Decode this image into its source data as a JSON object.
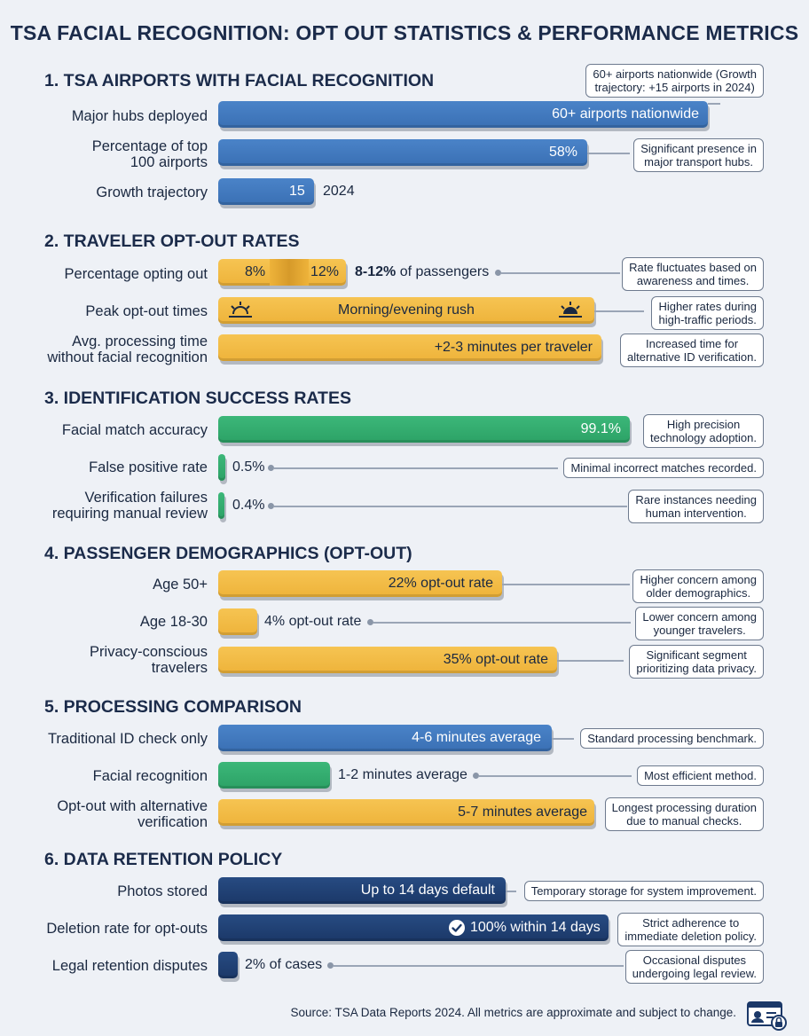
{
  "title": "TSA FACIAL RECOGNITION: OPT OUT STATISTICS & PERFORMANCE METRICS",
  "source": "Source: TSA Data Reports 2024. All metrics are approximate and subject to change.",
  "colors": {
    "blue": "#3f77bd",
    "yellow": "#f2bb45",
    "green": "#33ad6f",
    "navy": "#21416f",
    "background": "#eef1f6"
  },
  "icons": [
    "sunrise-icon",
    "sunset-icon",
    "check-circle-icon",
    "id-card-lock-icon"
  ],
  "sections": [
    {
      "title": "1. TSA AIRPORTS WITH FACIAL RECOGNITION",
      "rows": [
        {
          "label": "Major hubs deployed",
          "bar_text": "60+ airports nationwide",
          "note": "60+ airports nationwide (Growth\ntrajectory: +15 airports in 2024)"
        },
        {
          "label": "Percentage of top\n100 airports",
          "bar_text": "58%",
          "note": "Significant presence in\nmajor transport hubs."
        },
        {
          "label": "Growth trajectory",
          "bar_text": "15",
          "outside_text": "2024"
        }
      ]
    },
    {
      "title": "2. TRAVELER OPT-OUT RATES",
      "rows": [
        {
          "label": "Percentage opting out",
          "low_text": "8%",
          "high_text": "12%",
          "outside_bold": "8-12%",
          "outside_text": " of passengers",
          "note": "Rate fluctuates based on\nawareness and times."
        },
        {
          "label": "Peak opt-out times",
          "bar_text": "Morning/evening rush",
          "note": "Higher rates during\nhigh-traffic periods."
        },
        {
          "label": "Avg. processing time\nwithout facial recognition",
          "bar_text": "+2-3 minutes per traveler",
          "note": "Increased time for\nalternative ID verification."
        }
      ]
    },
    {
      "title": "3. IDENTIFICATION SUCCESS RATES",
      "rows": [
        {
          "label": "Facial match accuracy",
          "bar_text": "99.1%",
          "note": "High precision\ntechnology adoption."
        },
        {
          "label": "False positive rate",
          "outside_text": "0.5%",
          "note": "Minimal incorrect matches recorded."
        },
        {
          "label": "Verification failures\nrequiring manual review",
          "outside_text": "0.4%",
          "note": "Rare instances needing\nhuman intervention."
        }
      ]
    },
    {
      "title": "4.  PASSENGER DEMOGRAPHICS (OPT-OUT)",
      "rows": [
        {
          "label": "Age 50+",
          "bar_text": "22% opt-out rate",
          "note": "Higher concern among\nolder demographics."
        },
        {
          "label": "Age 18-30",
          "outside_text": "4% opt-out rate",
          "note": "Lower concern among\nyounger travelers."
        },
        {
          "label": "Privacy-conscious\ntravelers",
          "bar_text": "35% opt-out rate",
          "note": "Significant segment\nprioritizing data privacy."
        }
      ]
    },
    {
      "title": "5. PROCESSING COMPARISON",
      "rows": [
        {
          "label": "Traditional ID check only",
          "bar_text": "4-6 minutes average",
          "note": "Standard processing benchmark."
        },
        {
          "label": "Facial recognition",
          "outside_text": "1-2 minutes average",
          "note": "Most efficient method."
        },
        {
          "label": "Opt-out with alternative\nverification",
          "bar_text": "5-7 minutes average",
          "note": "Longest processing duration\ndue to manual checks."
        }
      ]
    },
    {
      "title": "6. DATA RETENTION POLICY",
      "rows": [
        {
          "label": "Photos stored",
          "bar_text": "Up to 14 days default",
          "note": "Temporary storage for system improvement."
        },
        {
          "label": "Deletion rate for opt-outs",
          "bar_text": "100% within 14 days",
          "note": "Strict adherence to\nimmediate deletion policy."
        },
        {
          "label": "Legal retention disputes",
          "outside_text": "2% of cases",
          "note": "Occasional disputes\nundergoing legal review."
        }
      ]
    }
  ],
  "chart_data": {
    "type": "bar",
    "title": "TSA FACIAL RECOGNITION: OPT OUT STATISTICS & PERFORMANCE METRICS",
    "orientation": "horizontal",
    "grid": false,
    "legend": "none",
    "groups": [
      {
        "name": "1. TSA AIRPORTS WITH FACIAL RECOGNITION",
        "categories": [
          "Major hubs deployed",
          "Percentage of top 100 airports",
          "Growth trajectory"
        ],
        "values": [
          60,
          58,
          15
        ]
      },
      {
        "name": "2. TRAVELER OPT-OUT RATES",
        "categories": [
          "Percentage opting out",
          "Peak opt-out times",
          "Avg. processing time without facial recognition"
        ],
        "values": [
          [
            8,
            12
          ],
          null,
          [
            2,
            3
          ]
        ]
      },
      {
        "name": "3. IDENTIFICATION SUCCESS RATES",
        "categories": [
          "Facial match accuracy",
          "False positive rate",
          "Verification failures requiring manual review"
        ],
        "values": [
          99.1,
          0.5,
          0.4
        ]
      },
      {
        "name": "4.  PASSENGER DEMOGRAPHICS (OPT-OUT)",
        "categories": [
          "Age 50+",
          "Age 18-30",
          "Privacy-conscious travelers"
        ],
        "values": [
          22,
          4,
          35
        ]
      },
      {
        "name": "5. PROCESSING COMPARISON",
        "categories": [
          "Traditional ID check only",
          "Facial recognition",
          "Opt-out with alternative verification"
        ],
        "values": [
          [
            4,
            6
          ],
          [
            1,
            2
          ],
          [
            5,
            7
          ]
        ]
      },
      {
        "name": "6. DATA RETENTION POLICY",
        "categories": [
          "Photos stored",
          "Deletion rate for opt-outs",
          "Legal retention disputes"
        ],
        "values": [
          14,
          100,
          2
        ]
      }
    ]
  }
}
